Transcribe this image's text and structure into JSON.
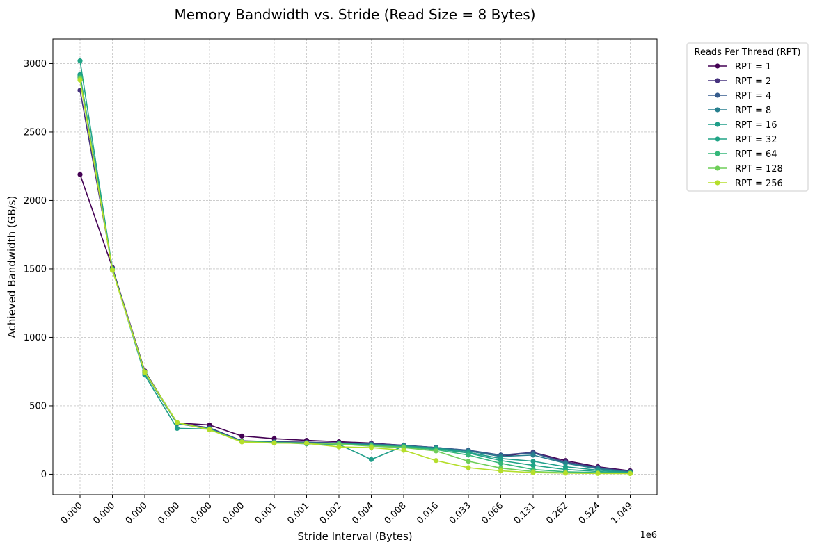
{
  "chart_data": {
    "type": "line",
    "title": "Memory Bandwidth vs. Stride (Read Size = 8 Bytes)",
    "xlabel": "Stride Interval (Bytes)",
    "ylabel": "Achieved Bandwidth (GB/s)",
    "x_offset_text": "1e6",
    "categories": [
      "0.000",
      "0.000",
      "0.000",
      "0.000",
      "0.000",
      "0.000",
      "0.001",
      "0.001",
      "0.002",
      "0.004",
      "0.008",
      "0.016",
      "0.033",
      "0.066",
      "0.131",
      "0.262",
      "0.524",
      "1.049"
    ],
    "ylim": [
      -150,
      3180
    ],
    "yticks": [
      0,
      500,
      1000,
      1500,
      2000,
      2500,
      3000
    ],
    "ytick_labels": [
      "0",
      "500",
      "1000",
      "1500",
      "2000",
      "2500",
      "3000"
    ],
    "grid": true,
    "legend": {
      "title": "Reads Per Thread (RPT)",
      "placement": "outside-right"
    },
    "series": [
      {
        "name": "RPT = 1",
        "color": "#440154",
        "values": [
          2190,
          1510,
          755,
          375,
          360,
          280,
          260,
          248,
          238,
          228,
          210,
          195,
          170,
          130,
          160,
          100,
          55,
          25
        ]
      },
      {
        "name": "RPT = 2",
        "color": "#46327e",
        "values": [
          2805,
          1505,
          750,
          372,
          340,
          245,
          238,
          235,
          230,
          225,
          212,
          195,
          175,
          140,
          160,
          90,
          50,
          20
        ]
      },
      {
        "name": "RPT = 4",
        "color": "#365c8d",
        "values": [
          2900,
          1500,
          745,
          370,
          335,
          242,
          236,
          232,
          228,
          220,
          210,
          195,
          175,
          140,
          155,
          85,
          45,
          18
        ]
      },
      {
        "name": "RPT = 8",
        "color": "#277f8e",
        "values": [
          2910,
          1500,
          740,
          370,
          332,
          240,
          234,
          230,
          225,
          218,
          208,
          192,
          170,
          130,
          140,
          80,
          40,
          15
        ]
      },
      {
        "name": "RPT = 16",
        "color": "#1f9e89",
        "values": [
          2920,
          1500,
          725,
          335,
          330,
          240,
          232,
          222,
          218,
          108,
          205,
          190,
          160,
          115,
          95,
          55,
          30,
          12
        ]
      },
      {
        "name": "RPT = 32",
        "color": "#20a486",
        "values": [
          3020,
          1500,
          740,
          375,
          330,
          240,
          232,
          228,
          225,
          210,
          202,
          185,
          155,
          100,
          65,
          35,
          20,
          10
        ]
      },
      {
        "name": "RPT = 64",
        "color": "#35b779",
        "values": [
          2900,
          1495,
          745,
          375,
          328,
          238,
          230,
          228,
          222,
          208,
          200,
          180,
          140,
          80,
          35,
          18,
          12,
          8
        ]
      },
      {
        "name": "RPT = 128",
        "color": "#6ece58",
        "values": [
          2890,
          1495,
          750,
          378,
          328,
          238,
          230,
          228,
          220,
          205,
          195,
          170,
          95,
          45,
          20,
          10,
          8,
          6
        ]
      },
      {
        "name": "RPT = 256",
        "color": "#b5de2b",
        "values": [
          2880,
          1490,
          745,
          378,
          325,
          236,
          228,
          226,
          200,
          195,
          175,
          100,
          48,
          25,
          12,
          8,
          6,
          5
        ]
      }
    ]
  }
}
